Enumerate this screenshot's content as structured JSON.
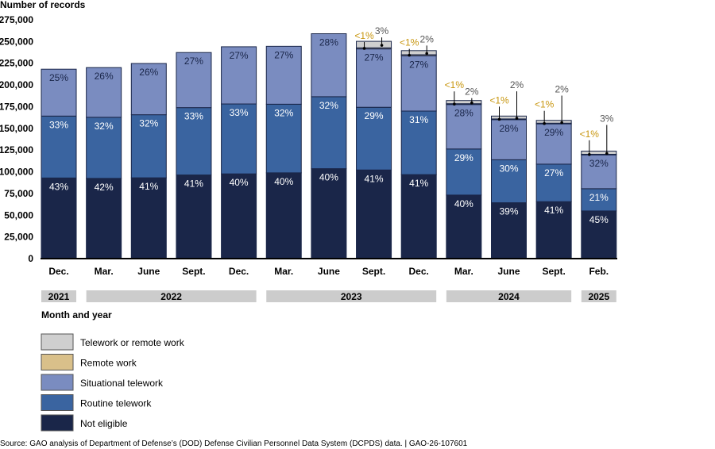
{
  "chart_data": {
    "type": "bar",
    "stacked": true,
    "title": "",
    "ylabel": "Number of records",
    "xlabel": "Month and year",
    "ylim": [
      0,
      275000
    ],
    "yticks": [
      0,
      25000,
      50000,
      75000,
      100000,
      125000,
      150000,
      175000,
      200000,
      225000,
      250000,
      275000
    ],
    "ytick_labels": [
      "0",
      "25,000",
      "50,000",
      "75,000",
      "100,000",
      "125,000",
      "150,000",
      "175,000",
      "200,000",
      "225,000",
      "250,000",
      "275,000"
    ],
    "categories": [
      "Dec.",
      "Mar.",
      "June",
      "Sept.",
      "Dec.",
      "Mar.",
      "June",
      "Sept.",
      "Dec.",
      "Mar.",
      "June",
      "Sept.",
      "Feb."
    ],
    "years": [
      {
        "label": "2021",
        "start": 0,
        "end": 0
      },
      {
        "label": "2022",
        "start": 1,
        "end": 4
      },
      {
        "label": "2023",
        "start": 5,
        "end": 8
      },
      {
        "label": "2024",
        "start": 9,
        "end": 11
      },
      {
        "label": "2025",
        "start": 12,
        "end": 12
      }
    ],
    "totals": [
      216000,
      220000,
      227000,
      235000,
      244000,
      247000,
      259000,
      249000,
      236000,
      183000,
      165000,
      160000,
      122000
    ],
    "series": [
      {
        "name": "Not eligible",
        "color": "#1a2649",
        "label_color": "#ffffff",
        "values": [
          43,
          42,
          41,
          41,
          40,
          40,
          40,
          41,
          41,
          40,
          39,
          41,
          45
        ],
        "labels": [
          "43%",
          "42%",
          "41%",
          "41%",
          "40%",
          "40%",
          "40%",
          "41%",
          "41%",
          "40%",
          "39%",
          "41%",
          "45%"
        ]
      },
      {
        "name": "Routine telework",
        "color": "#3a64a0",
        "label_color": "#ffffff",
        "values": [
          33,
          32,
          32,
          33,
          33,
          32,
          32,
          29,
          31,
          29,
          30,
          27,
          21
        ],
        "labels": [
          "33%",
          "32%",
          "32%",
          "33%",
          "33%",
          "32%",
          "32%",
          "29%",
          "31%",
          "29%",
          "30%",
          "27%",
          "21%"
        ]
      },
      {
        "name": "Situational telework",
        "color": "#7a8cc0",
        "label_color": "#1a2649",
        "values": [
          25,
          26,
          26,
          27,
          27,
          27,
          28,
          27,
          27,
          28,
          28,
          29,
          32
        ],
        "labels": [
          "25%",
          "26%",
          "26%",
          "27%",
          "27%",
          "27%",
          "28%",
          "27%",
          "27%",
          "28%",
          "28%",
          "29%",
          "32%"
        ]
      },
      {
        "name": "Remote work",
        "color": "#d9c08a",
        "label_color": "#c8960f",
        "values": [
          0,
          0,
          0,
          0,
          0,
          0,
          0,
          0.5,
          0.5,
          0.5,
          0.5,
          0.5,
          0.5
        ],
        "labels": [
          "",
          "",
          "",
          "",
          "",
          "",
          "",
          "<1%",
          "<1%",
          "<1%",
          "<1%",
          "<1%",
          "<1%"
        ]
      },
      {
        "name": "Telework or remote work",
        "color": "#cfcfcf",
        "label_color": "#555555",
        "values": [
          0,
          0,
          0,
          0,
          0,
          0,
          0,
          3,
          2,
          2,
          2,
          2,
          3
        ],
        "labels": [
          "",
          "",
          "",
          "",
          "",
          "",
          "",
          "3%",
          "2%",
          "2%",
          "2%",
          "2%",
          "3%"
        ]
      }
    ],
    "legend": [
      "Telework or remote work",
      "Remote work",
      "Situational telework",
      "Routine telework",
      "Not eligible"
    ],
    "legend_position": "bottom-left",
    "grid": false
  },
  "source_note": "Source: GAO analysis of Department of Defense’s (DOD) Defense Civilian Personnel Data System (DCPDS) data.  |  GAO-26-107601"
}
